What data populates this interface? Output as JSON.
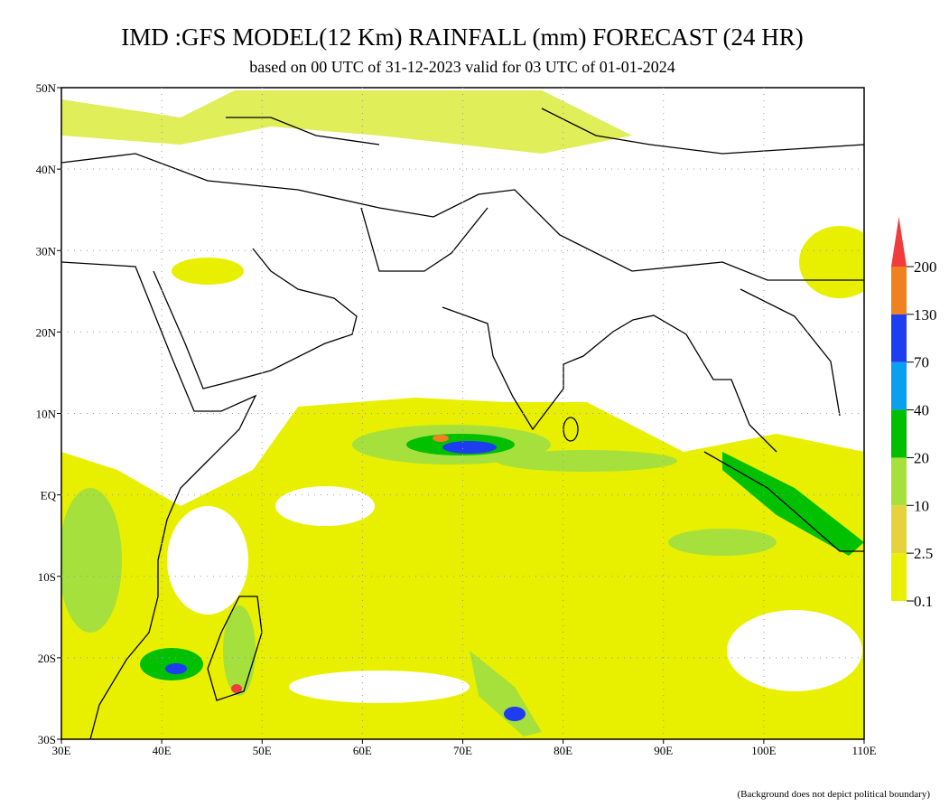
{
  "header": {
    "title": "IMD :GFS MODEL(12 Km) RAINFALL (mm) FORECAST (24 HR)",
    "subtitle": "based on 00 UTC of 31-12-2023 valid for 03 UTC of 01-01-2024"
  },
  "map": {
    "lat_labels": [
      "50N",
      "40N",
      "30N",
      "20N",
      "10N",
      "EQ",
      "10S",
      "20S",
      "30S"
    ],
    "lon_labels": [
      "30E",
      "40E",
      "50E",
      "60E",
      "70E",
      "80E",
      "90E",
      "100E",
      "110E"
    ]
  },
  "colorbar": {
    "labels": [
      "0.1",
      "2.5",
      "10",
      "20",
      "40",
      "70",
      "130",
      "200"
    ],
    "colors": [
      "#e8f000",
      "#e6d23c",
      "#a6e03c",
      "#00c000",
      "#0aa0f0",
      "#1e3cf0",
      "#f08020",
      "#f03c3c"
    ]
  },
  "footnote": "(Background does not depict political boundary)"
}
